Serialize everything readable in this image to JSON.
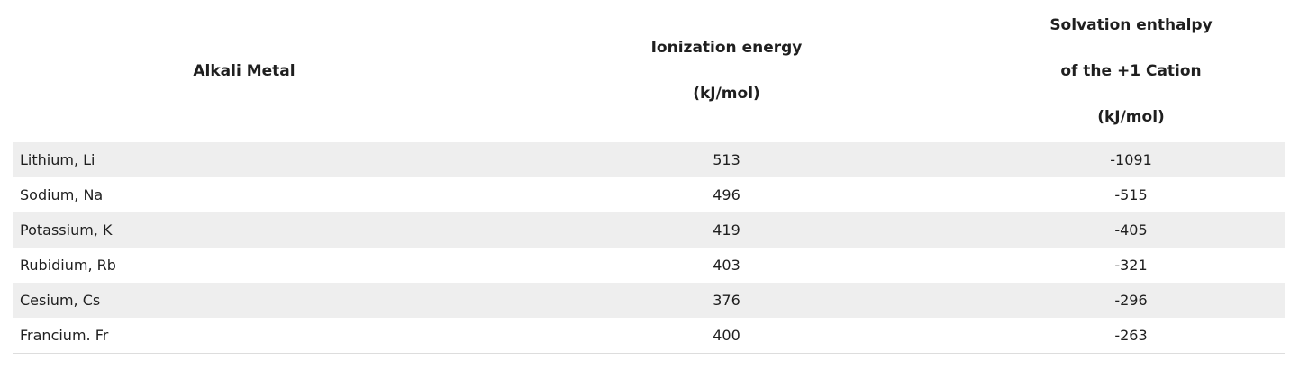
{
  "headers": {
    "metal": "Alkali Metal",
    "ionization_line1": "Ionization energy",
    "ionization_line2": "(kJ/mol)",
    "solvation_line1": "Solvation enthalpy",
    "solvation_line2": "of the +1 Cation",
    "solvation_line3": "(kJ/mol)"
  },
  "rows": [
    {
      "metal": "Lithium, Li",
      "ionization": "513",
      "solvation": "-1091"
    },
    {
      "metal": "Sodium, Na",
      "ionization": "496",
      "solvation": "-515"
    },
    {
      "metal": "Potassium, K",
      "ionization": "419",
      "solvation": "-405"
    },
    {
      "metal": "Rubidium, Rb",
      "ionization": "403",
      "solvation": "-321"
    },
    {
      "metal": "Cesium, Cs",
      "ionization": "376",
      "solvation": "-296"
    },
    {
      "metal": "Francium. Fr",
      "ionization": "400",
      "solvation": "-263"
    }
  ],
  "colors": {
    "stripe": "#eeeeee",
    "text": "#1f1f1f"
  }
}
